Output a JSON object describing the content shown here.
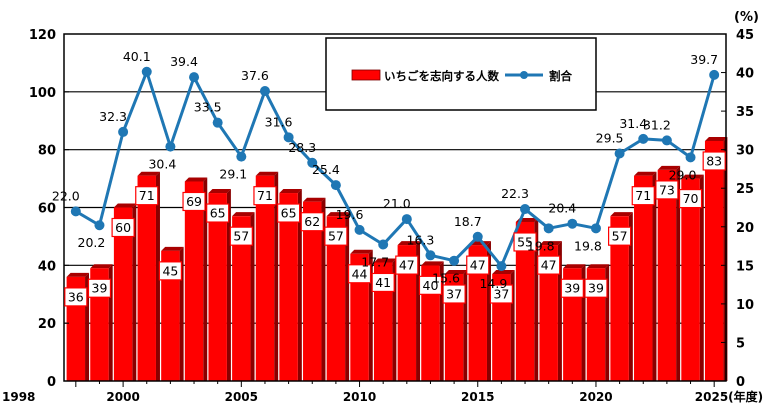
{
  "chart_data": {
    "type": "bar+line",
    "x": [
      1998,
      1999,
      2000,
      2001,
      2002,
      2003,
      2004,
      2005,
      2006,
      2007,
      2008,
      2009,
      2010,
      2011,
      2012,
      2013,
      2014,
      2015,
      2016,
      2017,
      2018,
      2019,
      2020,
      2021,
      2022,
      2023,
      2024,
      2025
    ],
    "x_tick_labels": [
      "1998",
      "2000",
      "2005",
      "2010",
      "2015",
      "2020",
      "2025"
    ],
    "x_unit": "(年度)",
    "series": [
      {
        "name": "いちごを志向する人数",
        "type": "bar",
        "axis": "left",
        "color": "#ff0000",
        "values": [
          36,
          39,
          60,
          71,
          45,
          69,
          65,
          57,
          71,
          65,
          62,
          57,
          44,
          41,
          47,
          40,
          37,
          47,
          37,
          55,
          47,
          39,
          39,
          57,
          71,
          73,
          70,
          83
        ]
      },
      {
        "name": "割合",
        "type": "line",
        "axis": "right",
        "color": "#1f77b4",
        "values": [
          22.0,
          20.2,
          32.3,
          40.1,
          30.4,
          39.4,
          33.5,
          29.1,
          37.6,
          31.6,
          28.3,
          25.4,
          19.6,
          17.7,
          21.0,
          16.3,
          15.6,
          18.7,
          14.9,
          22.3,
          19.8,
          20.4,
          19.8,
          29.5,
          31.4,
          31.2,
          29.0,
          39.7
        ]
      }
    ],
    "y_left": {
      "min": 0,
      "max": 120,
      "ticks": [
        0,
        20,
        40,
        60,
        80,
        100,
        120
      ]
    },
    "y_right": {
      "min": 0,
      "max": 45,
      "ticks": [
        0,
        5,
        10,
        15,
        20,
        25,
        30,
        35,
        40,
        45
      ],
      "unit": "(%)"
    },
    "grid": true,
    "legend_position": "top-center"
  }
}
